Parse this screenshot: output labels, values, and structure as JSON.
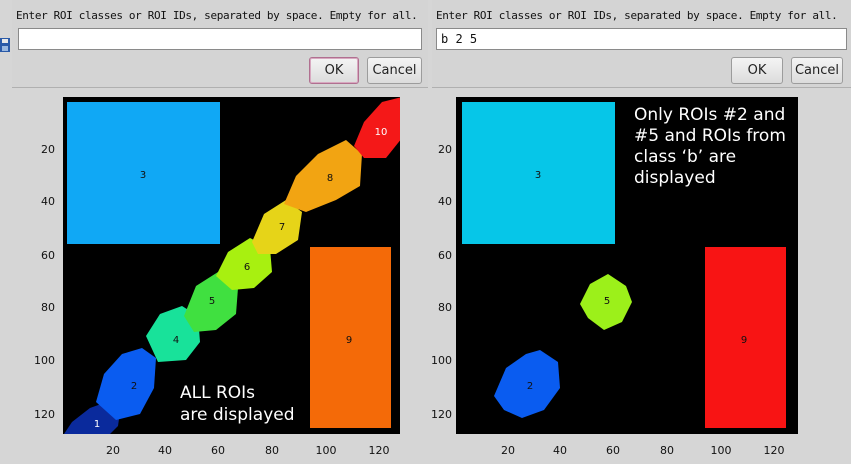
{
  "dialogs": [
    {
      "prompt": "Enter ROI classes or ROI IDs, separated by space. Empty for all.",
      "value": "",
      "ok_label": "OK",
      "cancel_label": "Cancel"
    },
    {
      "prompt": "Enter ROI classes or ROI IDs, separated by space. Empty for all.",
      "value": "b 2 5",
      "ok_label": "OK",
      "cancel_label": "Cancel"
    }
  ],
  "plots": [
    {
      "x_ticks": [
        "20",
        "40",
        "60",
        "80",
        "100",
        "120"
      ],
      "y_ticks": [
        "20",
        "40",
        "60",
        "80",
        "100",
        "120"
      ],
      "roi_labels": [
        "1",
        "2",
        "3",
        "4",
        "5",
        "6",
        "7",
        "8",
        "9",
        "10"
      ],
      "annotation": [
        "ALL ROIs",
        "are displayed"
      ],
      "colors": {
        "roi1": "#0a2a9c",
        "roi2": "#0a5cf0",
        "roi3": "#10a8f5",
        "roi4": "#18e29a",
        "roi5": "#40e040",
        "roi6": "#a8f010",
        "roi7": "#e6d418",
        "roi8": "#f2a412",
        "roi9": "#f46a08",
        "roi10": "#f41818"
      }
    },
    {
      "x_ticks": [
        "20",
        "40",
        "60",
        "80",
        "100",
        "120"
      ],
      "y_ticks": [
        "20",
        "40",
        "60",
        "80",
        "100",
        "120"
      ],
      "roi_labels": [
        "2",
        "3",
        "5",
        "9"
      ],
      "annotation": [
        "Only ROIs #2 and",
        "#5 and ROIs from",
        "class ‘b’ are",
        "displayed"
      ],
      "colors": {
        "roi2": "#0a5cf0",
        "roi3": "#06c6e8",
        "roi5": "#9cf01a",
        "roi9": "#f81414"
      }
    }
  ]
}
